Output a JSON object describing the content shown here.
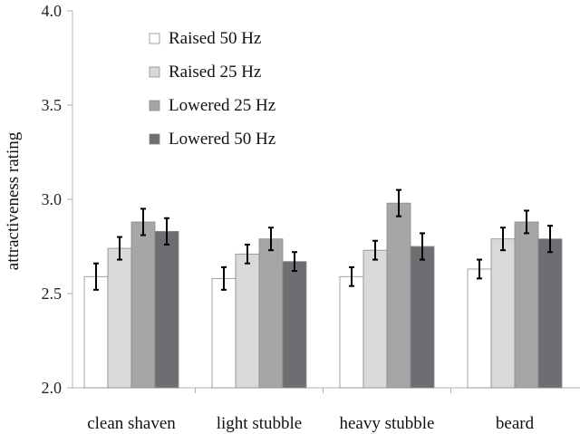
{
  "chart_data": {
    "type": "bar",
    "title": "",
    "xlabel": "",
    "ylabel": "attractiveness rating",
    "ylim": [
      2.0,
      4.0
    ],
    "yticks": [
      "2.0",
      "2.5",
      "3.0",
      "3.5",
      "4.0"
    ],
    "categories": [
      "clean shaven",
      "light stubble",
      "heavy stubble",
      "beard"
    ],
    "series": [
      {
        "name": "Raised 50 Hz",
        "color": "#ffffff",
        "values": [
          2.59,
          2.58,
          2.59,
          2.63
        ],
        "err": [
          0.07,
          0.06,
          0.05,
          0.05
        ]
      },
      {
        "name": "Raised 25 Hz",
        "color": "#d9d9d9",
        "values": [
          2.74,
          2.71,
          2.73,
          2.79
        ],
        "err": [
          0.06,
          0.05,
          0.05,
          0.06
        ]
      },
      {
        "name": "Lowered 25 Hz",
        "color": "#a6a6a6",
        "values": [
          2.88,
          2.79,
          2.98,
          2.88
        ],
        "err": [
          0.07,
          0.06,
          0.07,
          0.06
        ]
      },
      {
        "name": "Lowered 50 Hz",
        "color": "#6e6e72",
        "values": [
          2.83,
          2.67,
          2.75,
          2.79
        ],
        "err": [
          0.07,
          0.05,
          0.07,
          0.07
        ]
      }
    ],
    "legend_position": "top-left",
    "grid": false
  }
}
